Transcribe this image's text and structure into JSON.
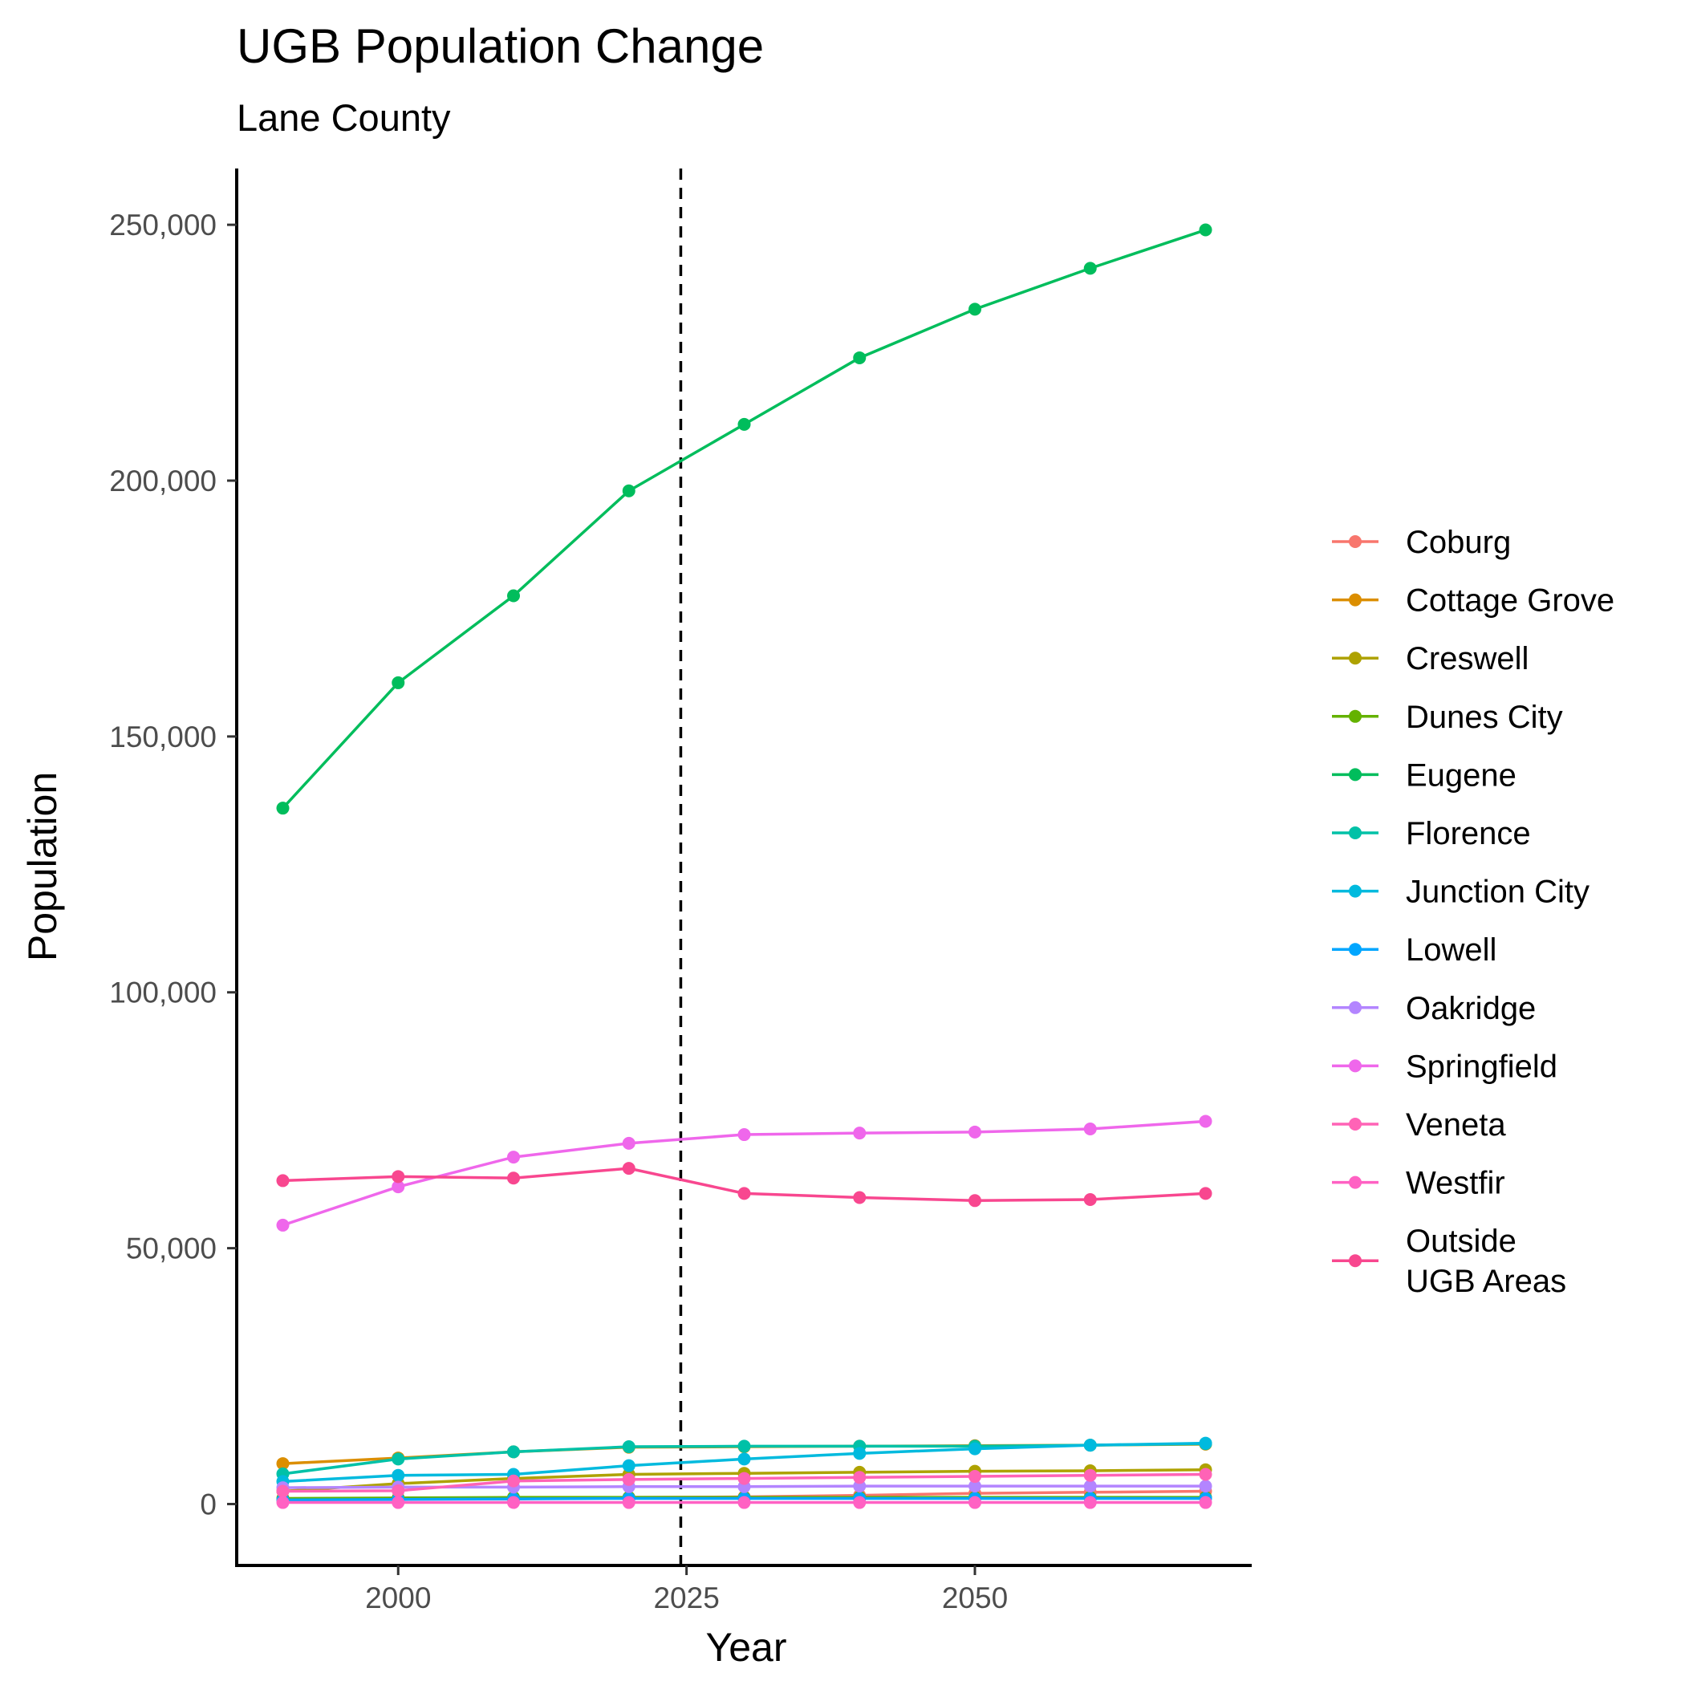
{
  "chart_data": {
    "type": "line",
    "title": "UGB Population Change",
    "subtitle": "Lane County",
    "xlabel": "Year",
    "ylabel": "Population",
    "xlim": [
      1986,
      2074
    ],
    "ylim": [
      -12000,
      261000
    ],
    "x_ticks": [
      2000,
      2025,
      2050
    ],
    "x_tick_labels": [
      "2000",
      "2025",
      "2050"
    ],
    "y_ticks": [
      0,
      50000,
      100000,
      150000,
      200000,
      250000
    ],
    "y_tick_labels": [
      "0",
      "50,000",
      "100,000",
      "150,000",
      "200,000",
      "250,000"
    ],
    "reference_line": {
      "x": 2024.5,
      "style": "dashed",
      "color": "#000000"
    },
    "grid": false,
    "legend_position": "right",
    "x": [
      1990,
      2000,
      2010,
      2020,
      2030,
      2040,
      2050,
      2060,
      2070
    ],
    "series": [
      {
        "name": "Coburg",
        "color": "#F8766D",
        "values": [
          800,
          1000,
          1000,
          1300,
          1400,
          1700,
          2100,
          2300,
          2500
        ]
      },
      {
        "name": "Cottage Grove",
        "color": "#DB8E00",
        "values": [
          7900,
          9000,
          10200,
          11100,
          11200,
          11300,
          11400,
          11500,
          11700
        ]
      },
      {
        "name": "Creswell",
        "color": "#AEA200",
        "values": [
          2500,
          4000,
          5000,
          5800,
          6000,
          6200,
          6400,
          6500,
          6700
        ]
      },
      {
        "name": "Dunes City",
        "color": "#64B200",
        "values": [
          1100,
          1200,
          1300,
          1300,
          1300,
          1300,
          1300,
          1300,
          1300
        ]
      },
      {
        "name": "Eugene",
        "color": "#00BD5C",
        "values": [
          136000,
          160500,
          177500,
          198000,
          211000,
          224000,
          233500,
          241500,
          249000
        ]
      },
      {
        "name": "Florence",
        "color": "#00C1A7",
        "values": [
          5900,
          8800,
          10200,
          11200,
          11300,
          11300,
          11300,
          11500,
          11800
        ]
      },
      {
        "name": "Junction City",
        "color": "#00BADE",
        "values": [
          4400,
          5600,
          5800,
          7500,
          8800,
          9900,
          10800,
          11500,
          11900
        ]
      },
      {
        "name": "Lowell",
        "color": "#00A6FF",
        "values": [
          800,
          900,
          1000,
          1100,
          1100,
          1100,
          1100,
          1100,
          1100
        ]
      },
      {
        "name": "Oakridge",
        "color": "#B385FF",
        "values": [
          3200,
          3300,
          3300,
          3400,
          3400,
          3500,
          3500,
          3500,
          3500
        ]
      },
      {
        "name": "Springfield",
        "color": "#EF67EB",
        "values": [
          54500,
          62000,
          67800,
          70500,
          72200,
          72500,
          72700,
          73300,
          74800
        ]
      },
      {
        "name": "Veneta",
        "color": "#FF63B6",
        "values": [
          2500,
          2600,
          4500,
          4800,
          5000,
          5200,
          5400,
          5600,
          5800
        ]
      },
      {
        "name": "Westfir",
        "color": "#FF61C3",
        "values": [
          300,
          300,
          300,
          300,
          300,
          300,
          300,
          300,
          300
        ]
      },
      {
        "name": "Outside UGB Areas",
        "color": "#F8478F",
        "values": [
          63200,
          64000,
          63700,
          65600,
          60700,
          59900,
          59300,
          59500,
          60700
        ]
      }
    ],
    "legend_order": [
      "Coburg",
      "Cottage Grove",
      "Creswell",
      "Dunes City",
      "Eugene",
      "Florence",
      "Junction City",
      "Lowell",
      "Oakridge",
      "Springfield",
      "Veneta",
      "Westfir",
      "Outside UGB Areas"
    ],
    "legend_line_breaks": {
      "Outside UGB Areas": [
        "Outside",
        "UGB Areas"
      ]
    }
  }
}
